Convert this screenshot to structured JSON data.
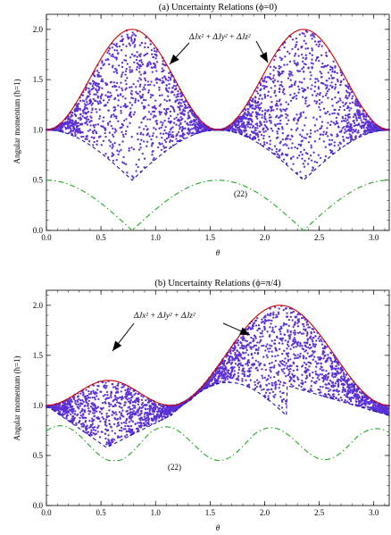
{
  "chart_data": [
    {
      "type": "scatter",
      "title": "(a) Uncertainty Relations (ϕ=0)",
      "xlabel": "θ",
      "ylabel": "Angular momentum (ħ=1)",
      "xlim": [
        0,
        3.1416
      ],
      "ylim": [
        0,
        2.15
      ],
      "x_ticks": [
        0.0,
        0.5,
        1.0,
        1.5,
        2.0,
        2.5,
        3.0
      ],
      "x_tick_labels": [
        "0.0",
        "0.5",
        "1.0",
        "1.5",
        "2.0",
        "2.5",
        "3.0"
      ],
      "y_ticks": [
        0.0,
        0.5,
        1.0,
        1.5,
        2.0
      ],
      "y_tick_labels": [
        "0.0",
        "0.5",
        "1.0",
        "1.5",
        "2.0"
      ],
      "phi": 0,
      "annotation_sum": "ΔJx² + ΔJy² + ΔJz²",
      "annotation_bound": "(22)",
      "series": [
        {
          "kind": "upper-bound",
          "color": "#cc0000",
          "style": "solid",
          "formula": "1 + sin^2(2θ)"
        },
        {
          "kind": "lower-bound",
          "color": "#1a1aa0",
          "style": "dashed"
        },
        {
          "kind": "bound-22",
          "color": "#22aa22",
          "style": "dash-dot",
          "formula": "0.5·|cos(2θ)|"
        },
        {
          "kind": "samples",
          "color": "#5b2fd6",
          "style": "points",
          "count": 2600
        }
      ]
    },
    {
      "type": "scatter",
      "title": "(b) Uncertainty Relations (ϕ=π/4)",
      "xlabel": "θ",
      "ylabel": "Angular momentum (ħ=1)",
      "xlim": [
        0,
        3.1416
      ],
      "ylim": [
        0,
        2.15
      ],
      "x_ticks": [
        0.0,
        0.5,
        1.0,
        1.5,
        2.0,
        2.5,
        3.0
      ],
      "x_tick_labels": [
        "0.0",
        "0.5",
        "1.0",
        "1.5",
        "2.0",
        "2.5",
        "3.0"
      ],
      "y_ticks": [
        0.0,
        0.5,
        1.0,
        1.5,
        2.0
      ],
      "y_tick_labels": [
        "0.0",
        "0.5",
        "1.0",
        "1.5",
        "2.0"
      ],
      "phi": 0.7854,
      "annotation_sum": "ΔJx² + ΔJy² + ΔJz²",
      "annotation_bound": "(22)",
      "series": [
        {
          "kind": "upper-bound",
          "color": "#cc0000",
          "style": "solid"
        },
        {
          "kind": "lower-bound",
          "color": "#1a1aa0",
          "style": "dashed"
        },
        {
          "kind": "bound-22",
          "color": "#22aa22",
          "style": "dash-dot"
        },
        {
          "kind": "samples",
          "color": "#5b2fd6",
          "style": "points",
          "count": 2600
        }
      ]
    }
  ]
}
